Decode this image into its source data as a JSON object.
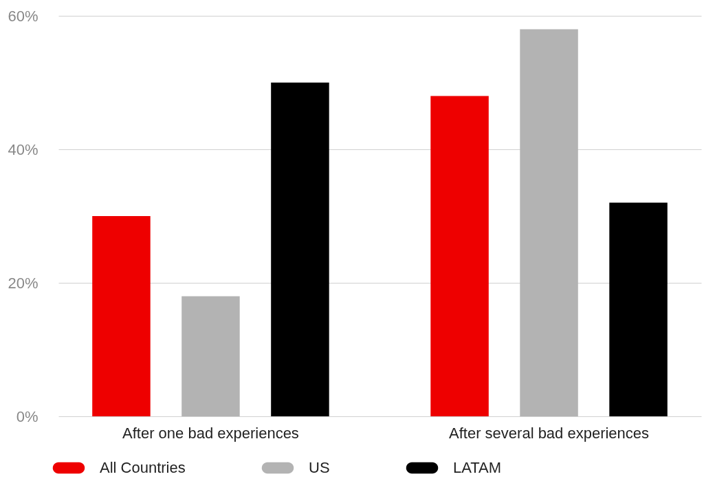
{
  "chart_data": {
    "type": "bar",
    "categories": [
      "After one bad experiences",
      "After several bad experiences"
    ],
    "series": [
      {
        "name": "All Countries",
        "color": "#ee0000",
        "values": [
          30,
          48
        ]
      },
      {
        "name": "US",
        "color": "#b3b3b3",
        "values": [
          18,
          58
        ]
      },
      {
        "name": "LATAM",
        "color": "#000000",
        "values": [
          50,
          32
        ]
      }
    ],
    "ylim": [
      0,
      60
    ],
    "yticks": [
      {
        "value": 0,
        "label": "0%"
      },
      {
        "value": 20,
        "label": "20%"
      },
      {
        "value": 40,
        "label": "40%"
      },
      {
        "value": 60,
        "label": "60%"
      }
    ],
    "grid": "y",
    "legend": "bottom"
  }
}
